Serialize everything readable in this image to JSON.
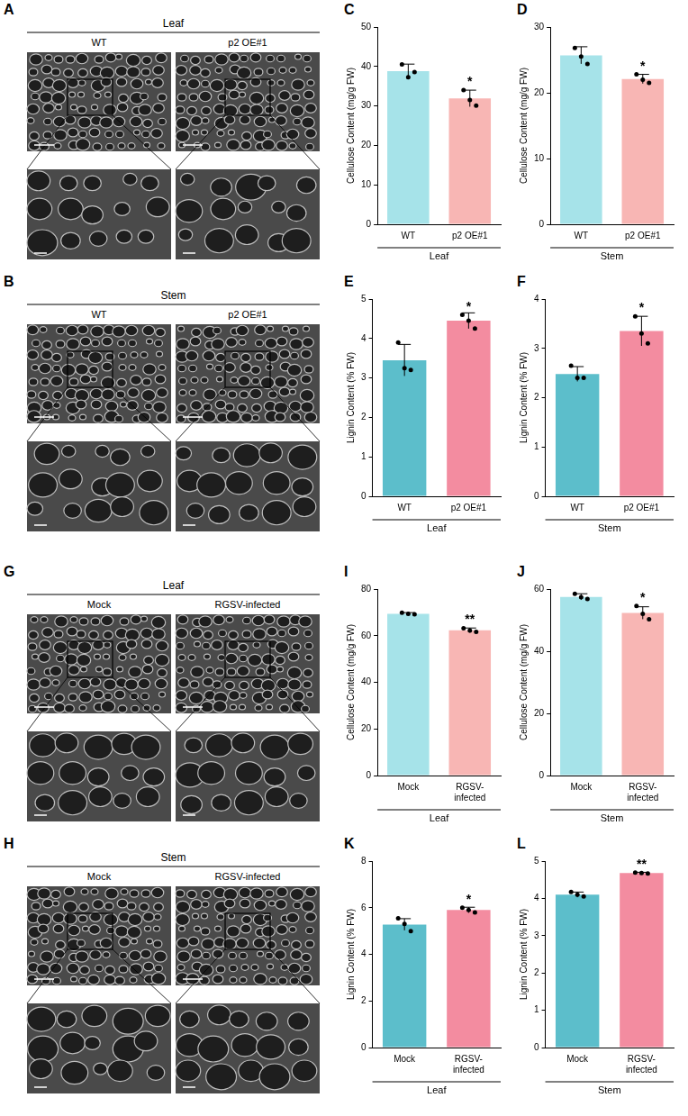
{
  "images": [
    {
      "panel": "A",
      "title": "Leaf",
      "columns": [
        "WT",
        "p2 OE#1"
      ]
    },
    {
      "panel": "B",
      "title": "Stem",
      "columns": [
        "WT",
        "p2 OE#1"
      ]
    },
    {
      "panel": "G",
      "title": "Leaf",
      "columns": [
        "Mock",
        "RGSV-infected"
      ]
    },
    {
      "panel": "H",
      "title": "Stem",
      "columns": [
        "Mock",
        "RGSV-infected"
      ]
    }
  ],
  "chart_data": [
    {
      "panel": "C",
      "type": "bar",
      "categories": [
        "WT",
        "p2 OE#1"
      ],
      "values": [
        38.8,
        31.9
      ],
      "errors": [
        1.8,
        2.1
      ],
      "points": [
        [
          40.5,
          37.3,
          38.6
        ],
        [
          34.0,
          31.5,
          30.1
        ]
      ],
      "colors": [
        "#a6e3e9",
        "#f8b6b4"
      ],
      "ylabel": "Cellulose Content (mg/g FW)",
      "xlabel": "Leaf",
      "ylim": [
        0,
        50
      ],
      "yticks": [
        0,
        10,
        20,
        30,
        40,
        50
      ],
      "annotations": [
        {
          "category": "p2 OE#1",
          "text": "*"
        }
      ],
      "grid": false
    },
    {
      "panel": "D",
      "type": "bar",
      "categories": [
        "WT",
        "p2 OE#1"
      ],
      "values": [
        25.7,
        22.1
      ],
      "errors": [
        1.3,
        0.7
      ],
      "points": [
        [
          26.8,
          25.5,
          24.4
        ],
        [
          22.8,
          22.0,
          21.5
        ]
      ],
      "colors": [
        "#a6e3e9",
        "#f8b6b4"
      ],
      "ylabel": "Cellulose Content (mg/g FW)",
      "xlabel": "Stem",
      "ylim": [
        0,
        30
      ],
      "yticks": [
        0,
        10,
        20,
        30
      ],
      "annotations": [
        {
          "category": "p2 OE#1",
          "text": "*"
        }
      ],
      "grid": false
    },
    {
      "panel": "E",
      "type": "bar",
      "categories": [
        "WT",
        "p2 OE#1"
      ],
      "values": [
        3.45,
        4.45
      ],
      "errors": [
        0.4,
        0.2
      ],
      "points": [
        [
          3.9,
          3.25,
          3.2
        ],
        [
          4.6,
          4.45,
          4.25
        ]
      ],
      "colors": [
        "#5cbecb",
        "#f38ca0"
      ],
      "ylabel": "Lignin Content (% FW)",
      "xlabel": "Leaf",
      "ylim": [
        0,
        5
      ],
      "yticks": [
        0,
        1,
        2,
        3,
        4,
        5
      ],
      "annotations": [
        {
          "category": "p2 OE#1",
          "text": "*"
        }
      ],
      "grid": false
    },
    {
      "panel": "F",
      "type": "bar",
      "categories": [
        "WT",
        "p2 OE#1"
      ],
      "values": [
        2.48,
        3.35
      ],
      "errors": [
        0.15,
        0.3
      ],
      "points": [
        [
          2.65,
          2.4,
          2.4
        ],
        [
          3.65,
          3.3,
          3.1
        ]
      ],
      "colors": [
        "#5cbecb",
        "#f38ca0"
      ],
      "ylabel": "Lignin Content (% FW)",
      "xlabel": "Stem",
      "ylim": [
        0,
        4
      ],
      "yticks": [
        0,
        1,
        2,
        3,
        4
      ],
      "annotations": [
        {
          "category": "p2 OE#1",
          "text": "*"
        }
      ],
      "grid": false
    },
    {
      "panel": "I",
      "type": "bar",
      "categories": [
        "Mock",
        "RGSV-infected"
      ],
      "values": [
        69.4,
        62.3
      ],
      "errors": [
        0.5,
        1.0
      ],
      "points": [
        [
          69.9,
          69.4,
          69.2
        ],
        [
          63.2,
          62.2,
          61.6
        ]
      ],
      "colors": [
        "#a6e3e9",
        "#f8b6b4"
      ],
      "ylabel": "Cellulose Content (mg/g FW)",
      "xlabel": "Leaf",
      "ylim": [
        0,
        80
      ],
      "yticks": [
        0,
        20,
        40,
        60,
        80
      ],
      "annotations": [
        {
          "category": "RGSV-infected",
          "text": "**"
        }
      ],
      "grid": false
    },
    {
      "panel": "J",
      "type": "bar",
      "categories": [
        "Mock",
        "RGSV-infected"
      ],
      "values": [
        57.5,
        52.3
      ],
      "errors": [
        1.0,
        2.0
      ],
      "points": [
        [
          58.5,
          57.4,
          56.8
        ],
        [
          54.6,
          52.0,
          50.3
        ]
      ],
      "colors": [
        "#a6e3e9",
        "#f8b6b4"
      ],
      "ylabel": "Cellulose Content (mg/g FW)",
      "xlabel": "Stem",
      "ylim": [
        0,
        60
      ],
      "yticks": [
        0,
        20,
        40,
        60
      ],
      "annotations": [
        {
          "category": "RGSV-infected",
          "text": "*"
        }
      ],
      "grid": false
    },
    {
      "panel": "K",
      "type": "bar",
      "categories": [
        "Mock",
        "RGSV-infected"
      ],
      "values": [
        5.28,
        5.9
      ],
      "errors": [
        0.25,
        0.12
      ],
      "points": [
        [
          5.55,
          5.3,
          5.0
        ],
        [
          6.0,
          5.9,
          5.8
        ]
      ],
      "colors": [
        "#5cbecb",
        "#f38ca0"
      ],
      "ylabel": "Lignin Content (% FW)",
      "xlabel": "Leaf",
      "ylim": [
        0,
        8
      ],
      "yticks": [
        0,
        2,
        4,
        6,
        8
      ],
      "annotations": [
        {
          "category": "RGSV-infected",
          "text": "*"
        }
      ],
      "grid": false
    },
    {
      "panel": "L",
      "type": "bar",
      "categories": [
        "Mock",
        "RGSV-infected"
      ],
      "values": [
        4.1,
        4.68
      ],
      "errors": [
        0.07,
        0.02
      ],
      "points": [
        [
          4.17,
          4.1,
          4.05
        ],
        [
          4.69,
          4.68,
          4.67
        ]
      ],
      "colors": [
        "#5cbecb",
        "#f38ca0"
      ],
      "ylabel": "Lignin Content (% FW)",
      "xlabel": "Stem",
      "ylim": [
        0,
        5
      ],
      "yticks": [
        0,
        1,
        2,
        3,
        4,
        5
      ],
      "annotations": [
        {
          "category": "RGSV-infected",
          "text": "**"
        }
      ],
      "grid": false
    }
  ]
}
